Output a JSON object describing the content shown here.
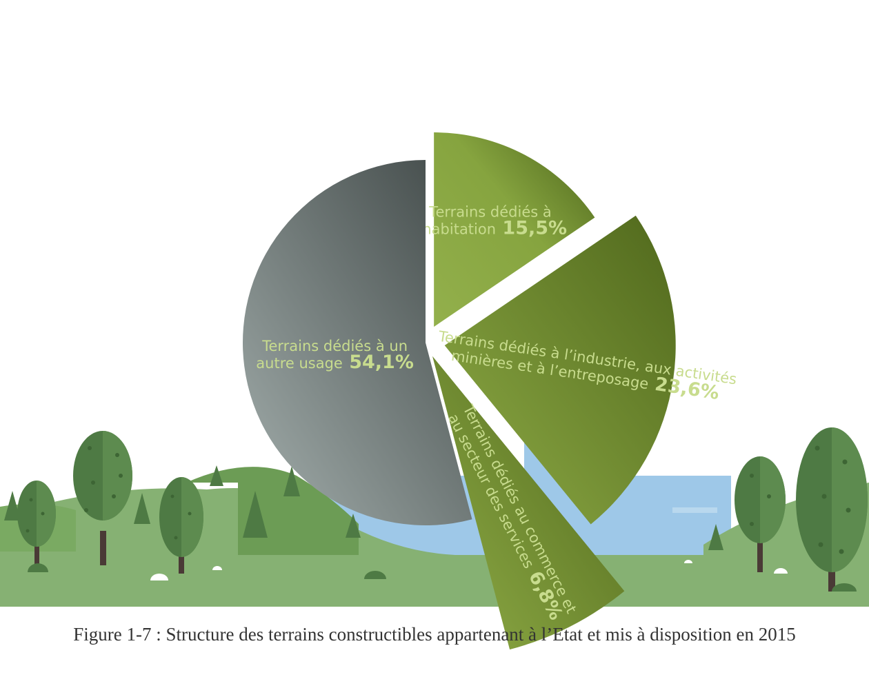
{
  "colors": {
    "gray_dark": "#4e5655",
    "gray_light": "#9aa6a4",
    "green_dark": "#55701f",
    "green_light": "#8fac48",
    "label_light": "#c8dc8e",
    "label_green": "#a9c25e",
    "city_blue": "#9ec8e8",
    "grass": "#86b173",
    "grass_dark": "#6c9c55",
    "tree": "#4e7a44",
    "trunk": "#4a3a36"
  },
  "chart_data": {
    "type": "pie",
    "title": "",
    "slices": [
      {
        "label": "Terrains dédiés à l’habitation",
        "label_lines": [
          "Terrains dédiés à",
          "l’habitation"
        ],
        "value": 15.5,
        "value_label": "15,5%"
      },
      {
        "label": "Terrains dédiés à l’industrie, aux activités minières et à l’entreposage",
        "label_lines": [
          "Terrains dédiés à l’industrie, aux activités",
          "minières et à l’entreposage"
        ],
        "value": 23.6,
        "value_label": "23,6%"
      },
      {
        "label": "Terrains dédiés au commerce et au secteur des services",
        "label_lines": [
          "Terrains dédiés au commerce et",
          "au secteur des services"
        ],
        "value": 6.8,
        "value_label": "6,8%"
      },
      {
        "label": "Terrains dédiés à un autre usage",
        "label_lines": [
          "Terrains dédiés à un",
          "autre usage"
        ],
        "value": 54.1,
        "value_label": "54,1%"
      }
    ]
  },
  "caption": "Figure 1-7 : Structure des terrains constructibles appartenant à l’Etat et mis à disposition en 2015"
}
